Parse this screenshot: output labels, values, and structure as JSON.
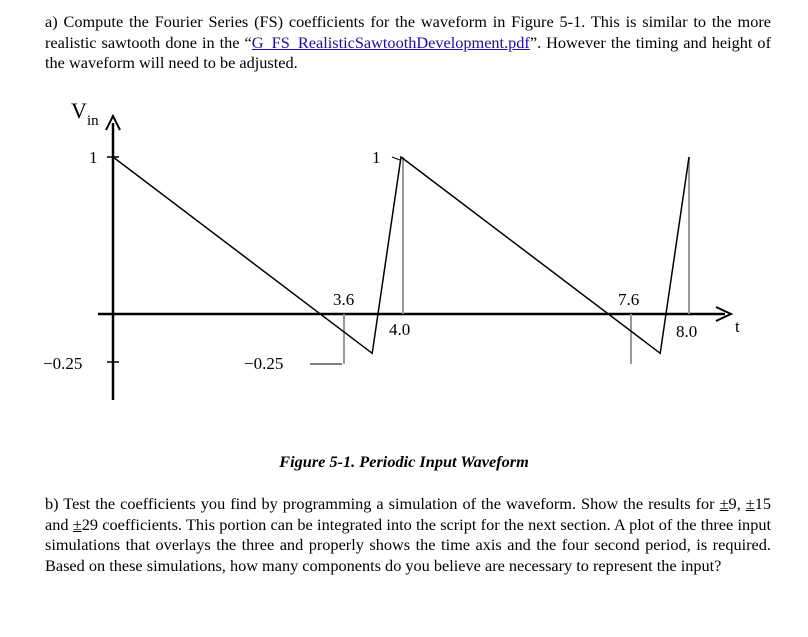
{
  "part_a": {
    "prefix": "a) Compute the Fourier Series (FS) coefficients for the waveform in Figure 5-1.  This is similar to the more realistic sawtooth done in the “",
    "link_text": "G_FS_RealisticSawtoothDevelopment.pdf",
    "suffix": "”.  However the timing and height of the waveform will need to be adjusted."
  },
  "figure": {
    "y_axis_label_main": "V",
    "y_axis_label_sub": "in",
    "x_axis_label": "t",
    "labels": {
      "y_one_left": "1",
      "y_one_peak": "1",
      "y_neg_left": "−0.25",
      "y_neg_trough": "−0.25",
      "t_3_6": "3.6",
      "t_4_0": "4.0",
      "t_7_6": "7.6",
      "t_8_0": "8.0"
    },
    "caption": "Figure 5-1. Periodic Input Waveform"
  },
  "chart_data": {
    "type": "line",
    "xlabel": "t",
    "ylabel": "Vin",
    "series": [
      {
        "x": [
          0,
          3.6,
          4.0,
          7.6,
          8.0
        ],
        "y": [
          1,
          -0.25,
          1,
          -0.25,
          1
        ]
      }
    ]
  },
  "part_b": {
    "t1": "b) Test the coefficients you find by programming a simulation of the waveform.  Show the results for ",
    "pm": "±",
    "n1": "9, ",
    "n2": "15 and ",
    "n3": "29 coefficients.  This portion can be integrated into the script for the next section.  A plot of the three input simulations that overlays the three and properly shows the time axis and the four second period,  is required.  Based on these simulations, how many components do you believe are necessary to represent the input?"
  }
}
